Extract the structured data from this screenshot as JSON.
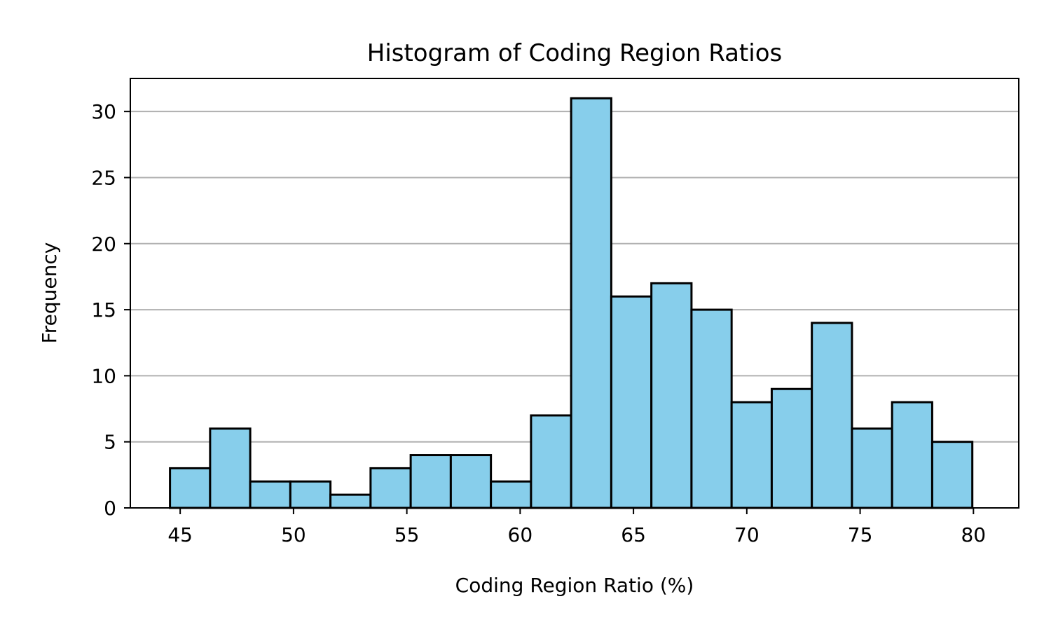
{
  "chart_data": {
    "type": "bar",
    "subtype": "histogram",
    "title": "Histogram of Coding Region Ratios",
    "xlabel": "Coding Region Ratio (%)",
    "ylabel": "Frequency",
    "xlim": [
      42.8,
      82.0
    ],
    "ylim": [
      0,
      32.5
    ],
    "xticks": [
      45,
      50,
      55,
      60,
      65,
      70,
      75,
      80
    ],
    "yticks": [
      0,
      5,
      10,
      15,
      20,
      25,
      30
    ],
    "grid": "horizontal",
    "bin_edges": [
      44.55,
      46.32,
      48.09,
      49.86,
      51.63,
      53.4,
      55.17,
      56.94,
      58.71,
      60.48,
      62.25,
      64.02,
      65.79,
      67.56,
      69.33,
      71.1,
      72.87,
      74.64,
      76.41,
      78.18,
      79.95
    ],
    "values": [
      3,
      6,
      2,
      2,
      1,
      3,
      4,
      4,
      2,
      7,
      31,
      16,
      17,
      15,
      8,
      9,
      14,
      6,
      8,
      5
    ],
    "colors": {
      "bar_fill": "#87CEEB",
      "bar_edge": "#000000",
      "grid": "#b0b0b0",
      "axes": "#000000"
    }
  }
}
